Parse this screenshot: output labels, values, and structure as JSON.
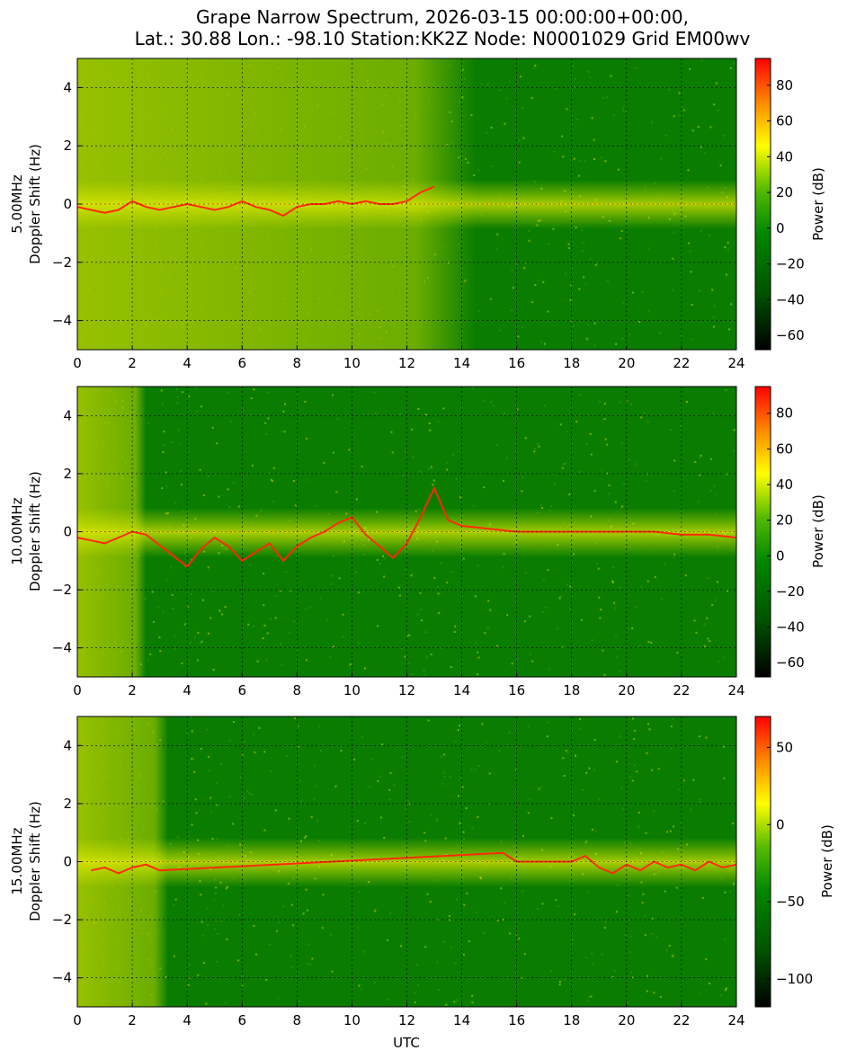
{
  "figure": {
    "title_line1": "Grape Narrow Spectrum, 2026-03-15 00:00:00+00:00,",
    "title_line2": "Lat.: 30.88 Lon.: -98.10 Station:KK2Z Node: N0001029 Grid EM00wv",
    "xlabel": "UTC"
  },
  "chart_data": [
    {
      "type": "heatmap",
      "band": "5.00MHz",
      "ylabel": "Doppler Shift (Hz)",
      "colorbar_label": "Power (dB)",
      "xlim": [
        0,
        24
      ],
      "ylim": [
        -5,
        5
      ],
      "xticks": [
        "0",
        "2",
        "4",
        "6",
        "8",
        "10",
        "12",
        "14",
        "16",
        "18",
        "20",
        "22",
        "24"
      ],
      "yticks": [
        "4",
        "2",
        "0",
        "−2",
        "−4"
      ],
      "ytick_values": [
        4,
        2,
        0,
        -2,
        -4
      ],
      "clim": [
        -68,
        95
      ],
      "cticks": [
        "80",
        "60",
        "40",
        "20",
        "0",
        "−20",
        "−40",
        "−60"
      ],
      "ctick_values": [
        80,
        60,
        40,
        20,
        0,
        -20,
        -40,
        -60
      ],
      "grid": true,
      "bright_until": 14.5,
      "trace_x": [
        0,
        0.5,
        1,
        1.5,
        2,
        2.5,
        3,
        3.5,
        4,
        4.5,
        5,
        5.5,
        6,
        6.5,
        7,
        7.5,
        8,
        8.5,
        9,
        9.5,
        10,
        10.5,
        11,
        11.5,
        12,
        12.5,
        13
      ],
      "trace_y": [
        -0.1,
        -0.2,
        -0.3,
        -0.2,
        0.1,
        -0.1,
        -0.2,
        -0.1,
        0.0,
        -0.1,
        -0.2,
        -0.1,
        0.1,
        -0.1,
        -0.2,
        -0.4,
        -0.1,
        0.0,
        0.0,
        0.1,
        0.0,
        0.1,
        0.0,
        0.0,
        0.1,
        0.4,
        0.6
      ]
    },
    {
      "type": "heatmap",
      "band": "10.00MHz",
      "ylabel": "Doppler Shift (Hz)",
      "colorbar_label": "Power (dB)",
      "xlim": [
        0,
        24
      ],
      "ylim": [
        -5,
        5
      ],
      "xticks": [
        "0",
        "2",
        "4",
        "6",
        "8",
        "10",
        "12",
        "14",
        "16",
        "18",
        "20",
        "22",
        "24"
      ],
      "yticks": [
        "4",
        "2",
        "0",
        "−2",
        "−4"
      ],
      "ytick_values": [
        4,
        2,
        0,
        -2,
        -4
      ],
      "clim": [
        -68,
        95
      ],
      "cticks": [
        "80",
        "60",
        "40",
        "20",
        "0",
        "−20",
        "−40",
        "−60"
      ],
      "ctick_values": [
        80,
        60,
        40,
        20,
        0,
        -20,
        -40,
        -60
      ],
      "grid": true,
      "bright_until": 2.5,
      "trace_x": [
        0,
        0.5,
        1,
        1.5,
        2,
        2.5,
        4,
        4.5,
        5,
        5.5,
        6,
        6.5,
        7,
        7.5,
        8,
        8.5,
        9,
        9.5,
        10,
        10.5,
        11,
        11.5,
        12,
        12.5,
        13,
        13.5,
        14,
        15,
        16,
        17,
        18,
        19,
        20,
        21,
        22,
        23,
        24
      ],
      "trace_y": [
        -0.2,
        -0.3,
        -0.4,
        -0.2,
        0.0,
        -0.1,
        -1.2,
        -0.6,
        -0.2,
        -0.5,
        -1.0,
        -0.7,
        -0.4,
        -1.0,
        -0.5,
        -0.2,
        0.0,
        0.3,
        0.5,
        -0.1,
        -0.5,
        -0.9,
        -0.4,
        0.5,
        1.5,
        0.4,
        0.2,
        0.1,
        0.0,
        0.0,
        0.0,
        0.0,
        0.0,
        0.0,
        -0.1,
        -0.1,
        -0.2
      ]
    },
    {
      "type": "heatmap",
      "band": "15.00MHz",
      "ylabel": "Doppler Shift (Hz)",
      "colorbar_label": "Power (dB)",
      "xlim": [
        0,
        24
      ],
      "ylim": [
        -5,
        5
      ],
      "xticks": [
        "0",
        "2",
        "4",
        "6",
        "8",
        "10",
        "12",
        "14",
        "16",
        "18",
        "20",
        "22",
        "24"
      ],
      "yticks": [
        "4",
        "2",
        "0",
        "−2",
        "−4"
      ],
      "ytick_values": [
        4,
        2,
        0,
        -2,
        -4
      ],
      "clim": [
        -118,
        70
      ],
      "cticks": [
        "50",
        "0",
        "−50",
        "−100"
      ],
      "ctick_values": [
        50,
        0,
        -50,
        -100
      ],
      "grid": true,
      "bright_until": 3.3,
      "trace_x": [
        0.5,
        1,
        1.5,
        2,
        2.5,
        3,
        15.5,
        16,
        17,
        18,
        18.5,
        19,
        19.5,
        20,
        20.5,
        21,
        21.5,
        22,
        22.5,
        23,
        23.5,
        24
      ],
      "trace_y": [
        -0.3,
        -0.2,
        -0.4,
        -0.2,
        -0.1,
        -0.3,
        0.3,
        0.0,
        0.0,
        0.0,
        0.2,
        -0.2,
        -0.4,
        -0.1,
        -0.3,
        0.0,
        -0.2,
        -0.1,
        -0.3,
        0.0,
        -0.2,
        -0.1
      ]
    }
  ]
}
